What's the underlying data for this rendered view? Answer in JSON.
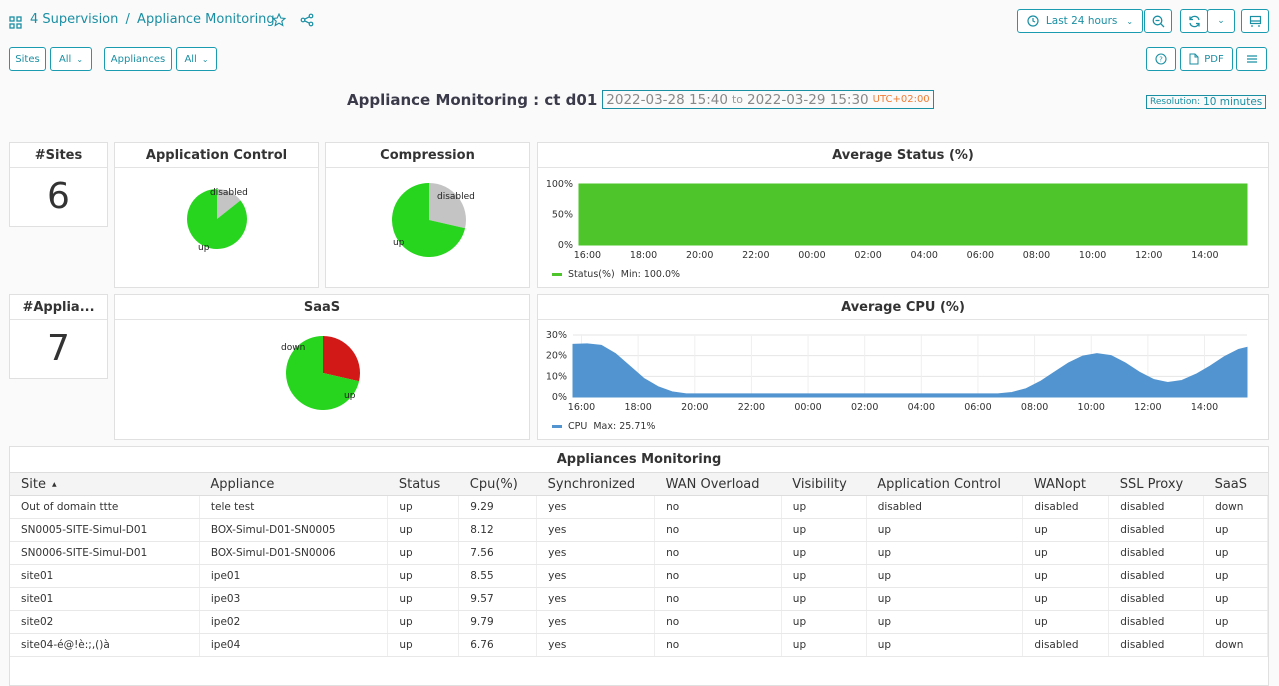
{
  "header": {
    "dashboard_number": "4 Supervision",
    "separator": "/",
    "title": "Appliance Monitoring",
    "time_range": "Last 24 hours"
  },
  "filters": {
    "sites_label": "Sites",
    "sites_value": "All",
    "appliances_label": "Appliances",
    "appliances_value": "All",
    "pdf_label": "PDF"
  },
  "banner": {
    "title": "Appliance Monitoring : ct d01",
    "from": "2022-03-28 15:40",
    "to_word": "to",
    "to": "2022-03-29 15:30",
    "tz": "UTC+02:00",
    "resolution_label": "Resolution:",
    "resolution_value": "10 minutes"
  },
  "stats": {
    "sites_title": "#Sites",
    "sites_value": "6",
    "appliances_title": "#Applia...",
    "appliances_value": "7"
  },
  "pies": {
    "app_control": {
      "title": "Application Control",
      "slices": [
        {
          "label": "disabled",
          "fraction": 0.143,
          "color": "#c4c4c4"
        },
        {
          "label": "up",
          "fraction": 0.857,
          "color": "#27d41e"
        }
      ]
    },
    "compression": {
      "title": "Compression",
      "slices": [
        {
          "label": "disabled",
          "fraction": 0.286,
          "color": "#c4c4c4"
        },
        {
          "label": "up",
          "fraction": 0.714,
          "color": "#27d41e"
        }
      ]
    },
    "saas": {
      "title": "SaaS",
      "slices": [
        {
          "label": "down",
          "fraction": 0.286,
          "color": "#d31818"
        },
        {
          "label": "up",
          "fraction": 0.714,
          "color": "#27d41e"
        }
      ]
    }
  },
  "colors": {
    "accent": "#1a8fa3",
    "status_green": "#4ec52a",
    "cpu_blue": "#5294cf",
    "tz_orange": "#f07c34"
  },
  "chart_data": [
    {
      "type": "area",
      "title": "Average Status (%)",
      "x_ticks": [
        "16:00",
        "18:00",
        "20:00",
        "22:00",
        "00:00",
        "02:00",
        "04:00",
        "06:00",
        "08:00",
        "10:00",
        "12:00",
        "14:00"
      ],
      "y_ticks": [
        "100%",
        "50%",
        "0%"
      ],
      "ylim": [
        0,
        100
      ],
      "series": [
        {
          "name": "Status(%)",
          "values": [
            100,
            100,
            100,
            100,
            100,
            100,
            100,
            100,
            100,
            100,
            100,
            100,
            100
          ]
        }
      ],
      "legend_text": "Status(%)  Min: 100.0%"
    },
    {
      "type": "area",
      "title": "Average CPU (%)",
      "x_ticks": [
        "16:00",
        "18:00",
        "20:00",
        "22:00",
        "00:00",
        "02:00",
        "04:00",
        "06:00",
        "08:00",
        "10:00",
        "12:00",
        "14:00"
      ],
      "y_ticks": [
        "30%",
        "20%",
        "10%",
        "0%"
      ],
      "ylim": [
        0,
        30
      ],
      "x_hours": [
        0,
        0.5,
        1,
        1.5,
        2,
        2.5,
        3,
        3.5,
        4,
        5,
        6,
        7,
        8,
        9,
        10,
        11,
        12,
        13,
        14,
        15,
        15.5,
        16,
        16.5,
        17,
        17.5,
        18,
        18.5,
        19,
        19.5,
        20,
        20.5,
        21,
        21.5,
        22,
        22.5,
        23,
        23.5,
        23.8
      ],
      "series": [
        {
          "name": "CPU",
          "values": [
            25.5,
            25.7,
            25,
            21,
            15,
            9,
            5,
            2.5,
            1.5,
            1.5,
            1.5,
            1.5,
            1.5,
            1.5,
            1.5,
            1.5,
            1.5,
            1.5,
            1.5,
            1.5,
            2.2,
            4,
            7.5,
            12,
            16.5,
            19.8,
            21,
            20,
            16.5,
            12,
            8.5,
            7,
            8,
            11,
            15,
            19.5,
            23,
            24
          ]
        }
      ],
      "legend_text": "CPU  Max: 25.71%"
    }
  ],
  "table": {
    "title": "Appliances Monitoring",
    "columns": [
      "Site",
      "Appliance",
      "Status",
      "Cpu(%)",
      "Synchronized",
      "WAN Overload",
      "Visibility",
      "Application Control",
      "WANopt",
      "SSL Proxy",
      "SaaS"
    ],
    "sort_indicator": "▲",
    "rows": [
      [
        "Out of domain ttte",
        "tele test",
        "up",
        "9.29",
        "yes",
        "no",
        "up",
        "disabled",
        "disabled",
        "disabled",
        "down"
      ],
      [
        "SN0005-SITE-Simul-D01",
        "BOX-Simul-D01-SN0005",
        "up",
        "8.12",
        "yes",
        "no",
        "up",
        "up",
        "up",
        "disabled",
        "up"
      ],
      [
        "SN0006-SITE-Simul-D01",
        "BOX-Simul-D01-SN0006",
        "up",
        "7.56",
        "yes",
        "no",
        "up",
        "up",
        "up",
        "disabled",
        "up"
      ],
      [
        "site01",
        "ipe01",
        "up",
        "8.55",
        "yes",
        "no",
        "up",
        "up",
        "up",
        "disabled",
        "up"
      ],
      [
        "site01",
        "ipe03",
        "up",
        "9.57",
        "yes",
        "no",
        "up",
        "up",
        "up",
        "disabled",
        "up"
      ],
      [
        "site02",
        "ipe02",
        "up",
        "9.79",
        "yes",
        "no",
        "up",
        "up",
        "up",
        "disabled",
        "up"
      ],
      [
        "site04-é@!è:;,()à",
        "ipe04",
        "up",
        "6.76",
        "yes",
        "no",
        "up",
        "up",
        "disabled",
        "disabled",
        "down"
      ]
    ]
  }
}
